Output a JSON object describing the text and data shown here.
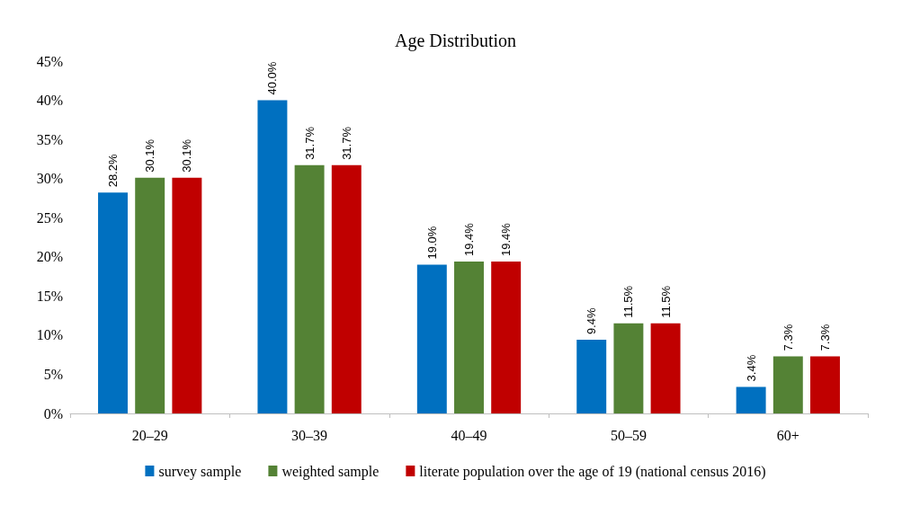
{
  "chart_data": {
    "type": "bar",
    "title": "Age Distribution",
    "categories": [
      "20–29",
      "30–39",
      "40–49",
      "50–59",
      "60+"
    ],
    "series": [
      {
        "name": "survey sample",
        "color": "#0070c0",
        "values": [
          28.2,
          40.0,
          19.0,
          9.4,
          3.4
        ],
        "value_labels": [
          "28.2%",
          "40.0%",
          "19.0%",
          "9.4%",
          "3.4%"
        ]
      },
      {
        "name": "weighted sample",
        "color": "#548235",
        "values": [
          30.1,
          31.7,
          19.4,
          11.5,
          7.3
        ],
        "value_labels": [
          "30.1%",
          "31.7%",
          "19.4%",
          "11.5%",
          "7.3%"
        ]
      },
      {
        "name": "literate population over the age of 19 (national census 2016)",
        "color": "#c00000",
        "values": [
          30.1,
          31.7,
          19.4,
          11.5,
          7.3
        ],
        "value_labels": [
          "30.1%",
          "31.7%",
          "19.4%",
          "11.5%",
          "7.3%"
        ]
      }
    ],
    "ylim": [
      0,
      45
    ],
    "yticks": [
      {
        "value": 0,
        "label": "0%"
      },
      {
        "value": 5,
        "label": "5%"
      },
      {
        "value": 10,
        "label": "10%"
      },
      {
        "value": 15,
        "label": "15%"
      },
      {
        "value": 20,
        "label": "20%"
      },
      {
        "value": 25,
        "label": "25%"
      },
      {
        "value": 30,
        "label": "30%"
      },
      {
        "value": 35,
        "label": "35%"
      },
      {
        "value": 40,
        "label": "40%"
      },
      {
        "value": 45,
        "label": "45%"
      }
    ],
    "grid": false,
    "legend": "bottom"
  }
}
